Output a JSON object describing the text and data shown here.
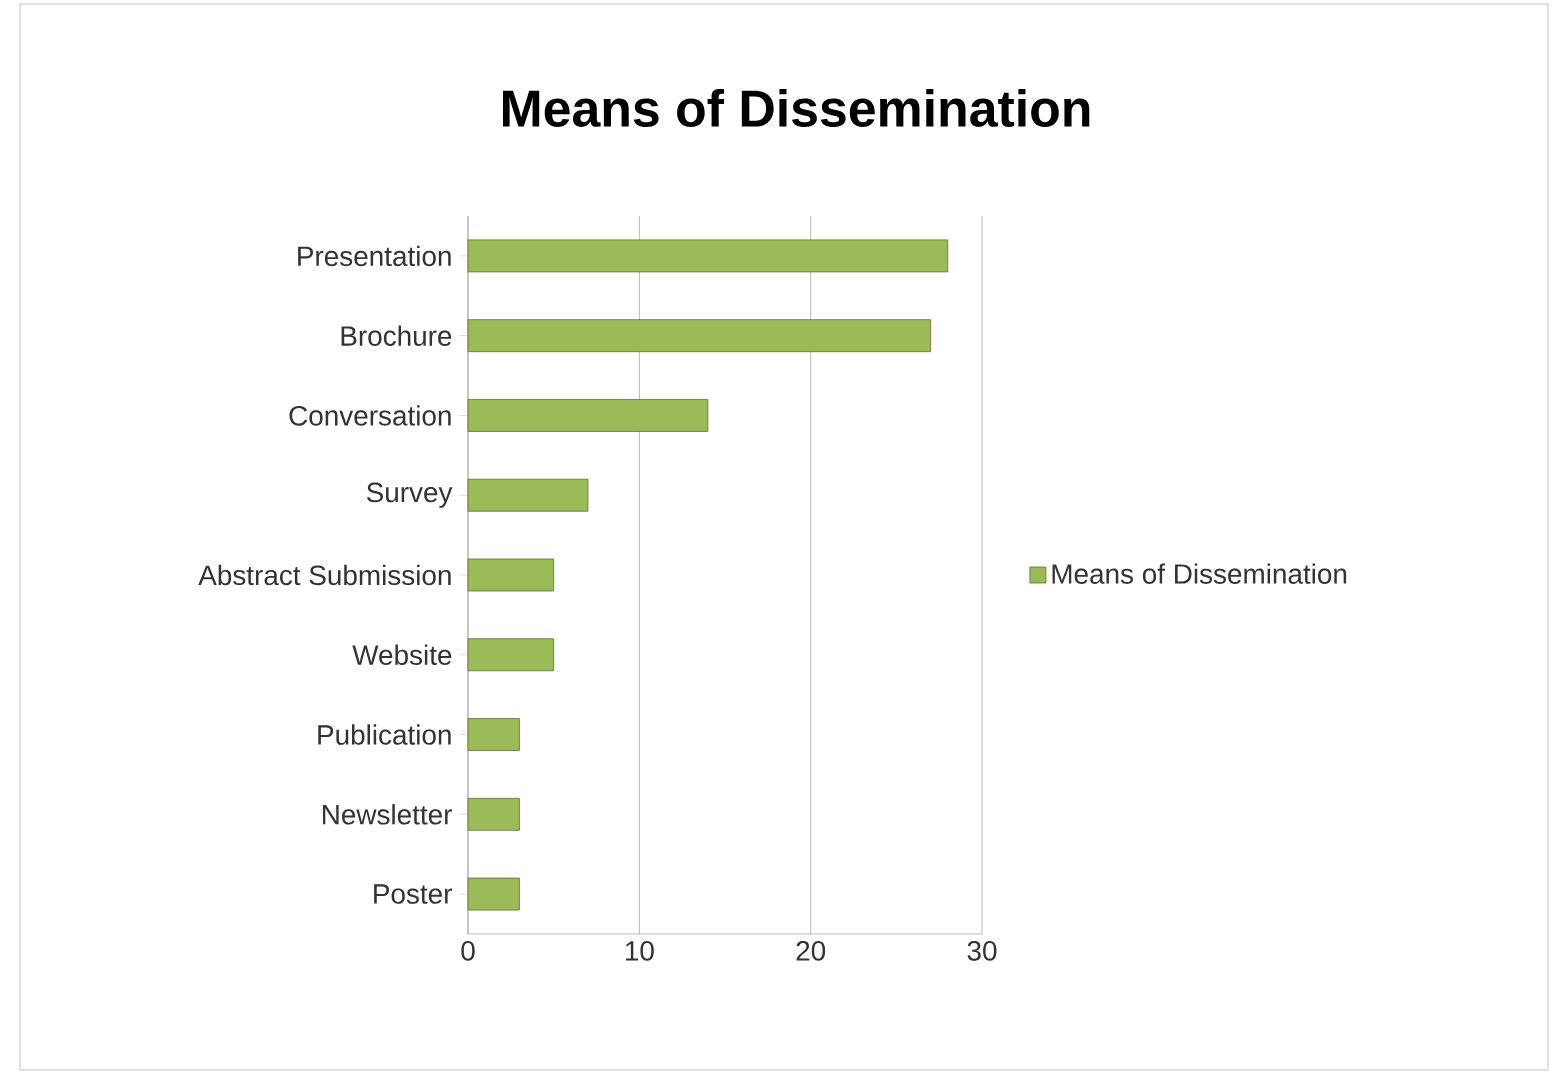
{
  "chart_data": {
    "type": "bar",
    "orientation": "horizontal",
    "title": "Means of Dissemination",
    "categories": [
      "Presentation",
      "Brochure",
      "Conversation",
      "Survey",
      "Abstract Submission",
      "Website",
      "Publication",
      "Newsletter",
      "Poster"
    ],
    "series": [
      {
        "name": "Means of Dissemination",
        "color": "#9bbb59",
        "values": [
          28,
          27,
          14,
          7,
          5,
          5,
          3,
          3,
          3
        ]
      }
    ],
    "xlim": [
      0,
      30
    ],
    "xticks": [
      0,
      10,
      20,
      30
    ],
    "grid": "x",
    "legend": "right"
  }
}
